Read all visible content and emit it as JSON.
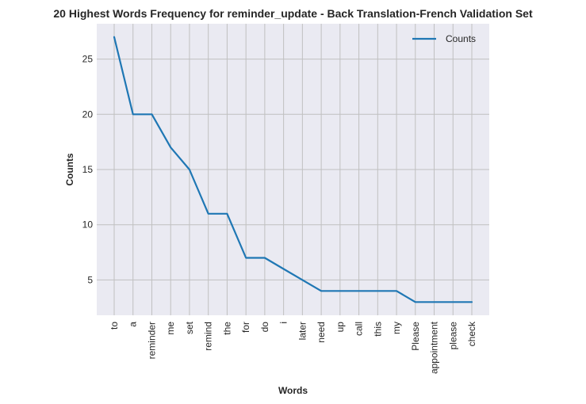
{
  "chart_data": {
    "type": "line",
    "title": "20 Highest Words Frequency for reminder_update - Back Translation-French Validation Set",
    "xlabel": "Words",
    "ylabel": "Counts",
    "categories": [
      "to",
      "a",
      "reminder",
      "me",
      "set",
      "remind",
      "the",
      "for",
      "do",
      "i",
      "later",
      "need",
      "up",
      "call",
      "this",
      "my",
      "Please",
      "appointment",
      "please",
      "check"
    ],
    "series": [
      {
        "name": "Counts",
        "values": [
          27,
          20,
          20,
          17,
          15,
          11,
          11,
          7,
          7,
          6,
          5,
          4,
          4,
          4,
          4,
          4,
          3,
          3,
          3,
          3
        ],
        "color": "#1f77b4"
      }
    ],
    "ylim": [
      1.8,
      28.2
    ],
    "yticks": [
      5,
      10,
      15,
      20,
      25
    ],
    "grid": true,
    "legend_position": "top-right",
    "background_color": "#eaeaf2",
    "grid_color": "#c0c0c0"
  }
}
